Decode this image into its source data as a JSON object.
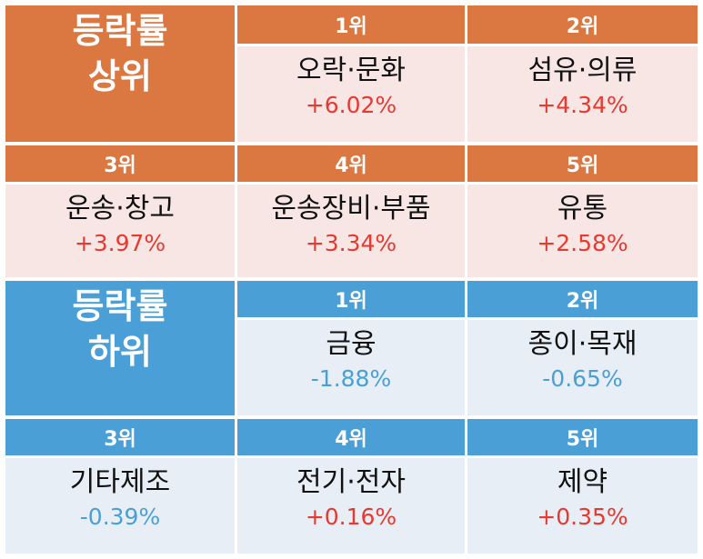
{
  "colors": {
    "top_header": "#db7741",
    "top_cell": "#f8e6e5",
    "bottom_header": "#4a9fd6",
    "bottom_cell": "#e8eef5",
    "positive": "#e8382f",
    "negative": "#4a9fd6"
  },
  "top": {
    "title_line1": "등락률",
    "title_line2": "상위",
    "items": [
      {
        "rank": "1위",
        "name": "오락·문화",
        "value": "+6.02%"
      },
      {
        "rank": "2위",
        "name": "섬유·의류",
        "value": "+4.34%"
      },
      {
        "rank": "3위",
        "name": "운송·창고",
        "value": "+3.97%"
      },
      {
        "rank": "4위",
        "name": "운송장비·부품",
        "value": "+3.34%"
      },
      {
        "rank": "5위",
        "name": "유통",
        "value": "+2.58%"
      }
    ]
  },
  "bottom": {
    "title_line1": "등락률",
    "title_line2": "하위",
    "items": [
      {
        "rank": "1위",
        "name": "금융",
        "value": "-1.88%"
      },
      {
        "rank": "2위",
        "name": "종이·목재",
        "value": "-0.65%"
      },
      {
        "rank": "3위",
        "name": "기타제조",
        "value": "-0.39%"
      },
      {
        "rank": "4위",
        "name": "전기·전자",
        "value": "+0.16%"
      },
      {
        "rank": "5위",
        "name": "제약",
        "value": "+0.35%"
      }
    ]
  }
}
